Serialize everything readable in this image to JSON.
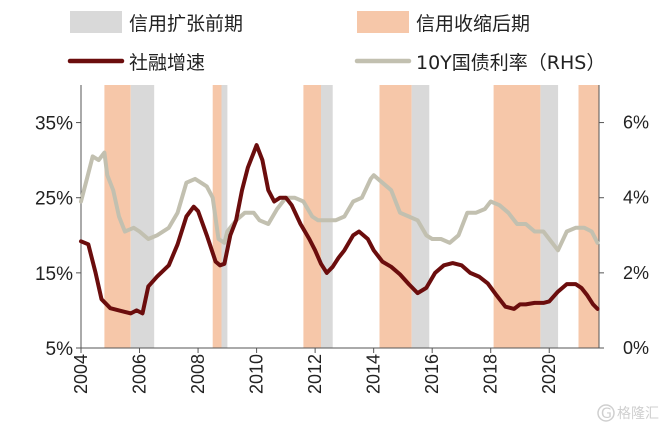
{
  "chart_data": {
    "type": "line",
    "legend": {
      "position": "top",
      "items": [
        {
          "label": "信用扩张前期",
          "kind": "band",
          "color": "#d9d9d9"
        },
        {
          "label": "信用收缩后期",
          "kind": "band",
          "color": "#f6c7a9"
        },
        {
          "label": "社融增速",
          "kind": "line",
          "color": "#6b0d0d"
        },
        {
          "label": "10Y国债利率（RHS）",
          "kind": "line",
          "color": "#c2c0b0"
        }
      ]
    },
    "left_axis": {
      "ylim": [
        0.05,
        0.4
      ],
      "ticks": [
        "5%",
        "15%",
        "25%",
        "35%"
      ],
      "tick_values": [
        0.05,
        0.15,
        0.25,
        0.35
      ]
    },
    "right_axis": {
      "ylim": [
        0,
        7
      ],
      "ticks": [
        "0%",
        "2%",
        "4%",
        "6%"
      ],
      "tick_values": [
        0,
        2,
        4,
        6
      ]
    },
    "x_axis": {
      "xlim": [
        2004,
        2021.7
      ],
      "ticks": [
        "2004",
        "2006",
        "2008",
        "2010",
        "2012",
        "2014",
        "2016",
        "2018",
        "2020"
      ],
      "tick_values": [
        2004,
        2006,
        2008,
        2010,
        2012,
        2014,
        2016,
        2018,
        2020
      ]
    },
    "bands": [
      {
        "start": 2004.8,
        "end": 2005.7,
        "category": "信用收缩后期"
      },
      {
        "start": 2005.7,
        "end": 2006.5,
        "category": "信用扩张前期"
      },
      {
        "start": 2008.5,
        "end": 2008.8,
        "category": "信用收缩后期"
      },
      {
        "start": 2008.8,
        "end": 2009.0,
        "category": "信用扩张前期"
      },
      {
        "start": 2011.6,
        "end": 2012.2,
        "category": "信用收缩后期"
      },
      {
        "start": 2012.2,
        "end": 2012.6,
        "category": "信用扩张前期"
      },
      {
        "start": 2014.2,
        "end": 2015.3,
        "category": "信用收缩后期"
      },
      {
        "start": 2015.3,
        "end": 2015.9,
        "category": "信用扩张前期"
      },
      {
        "start": 2018.1,
        "end": 2019.7,
        "category": "信用收缩后期"
      },
      {
        "start": 2019.7,
        "end": 2020.3,
        "category": "信用扩张前期"
      },
      {
        "start": 2021.0,
        "end": 2021.7,
        "category": "信用收缩后期"
      }
    ],
    "series": [
      {
        "name": "社融增速",
        "axis": "left",
        "color": "#6b0d0d",
        "x": [
          2004.0,
          2004.25,
          2004.5,
          2004.7,
          2005.0,
          2005.3,
          2005.5,
          2005.7,
          2005.9,
          2006.1,
          2006.3,
          2006.6,
          2007.0,
          2007.3,
          2007.6,
          2007.85,
          2008.0,
          2008.3,
          2008.6,
          2008.75,
          2008.9,
          2009.1,
          2009.3,
          2009.5,
          2009.7,
          2009.9,
          2010.0,
          2010.2,
          2010.4,
          2010.6,
          2010.8,
          2011.0,
          2011.2,
          2011.5,
          2011.8,
          2012.0,
          2012.2,
          2012.4,
          2012.6,
          2012.8,
          2013.0,
          2013.3,
          2013.5,
          2013.8,
          2014.0,
          2014.3,
          2014.6,
          2014.9,
          2015.2,
          2015.5,
          2015.8,
          2016.1,
          2016.4,
          2016.7,
          2017.0,
          2017.3,
          2017.6,
          2017.9,
          2018.2,
          2018.5,
          2018.8,
          2019.0,
          2019.2,
          2019.5,
          2019.8,
          2020.0,
          2020.3,
          2020.6,
          2020.9,
          2021.1,
          2021.3,
          2021.5,
          2021.65
        ],
        "values": [
          0.192,
          0.188,
          0.15,
          0.115,
          0.103,
          0.1,
          0.098,
          0.096,
          0.1,
          0.096,
          0.132,
          0.145,
          0.16,
          0.188,
          0.225,
          0.238,
          0.232,
          0.2,
          0.165,
          0.16,
          0.162,
          0.2,
          0.22,
          0.26,
          0.29,
          0.31,
          0.32,
          0.3,
          0.26,
          0.245,
          0.25,
          0.25,
          0.24,
          0.215,
          0.195,
          0.18,
          0.162,
          0.15,
          0.158,
          0.17,
          0.18,
          0.2,
          0.205,
          0.195,
          0.18,
          0.165,
          0.158,
          0.148,
          0.135,
          0.123,
          0.13,
          0.15,
          0.16,
          0.163,
          0.16,
          0.15,
          0.145,
          0.136,
          0.12,
          0.105,
          0.102,
          0.108,
          0.108,
          0.11,
          0.11,
          0.112,
          0.125,
          0.135,
          0.135,
          0.13,
          0.12,
          0.108,
          0.102
        ]
      },
      {
        "name": "10Y国债利率（RHS）",
        "axis": "right",
        "color": "#c2c0b0",
        "x": [
          2004.0,
          2004.2,
          2004.4,
          2004.6,
          2004.8,
          2004.9,
          2005.1,
          2005.3,
          2005.5,
          2005.8,
          2006.0,
          2006.3,
          2006.6,
          2007.0,
          2007.3,
          2007.6,
          2007.9,
          2008.1,
          2008.3,
          2008.5,
          2008.7,
          2008.9,
          2009.0,
          2009.3,
          2009.6,
          2009.9,
          2010.1,
          2010.4,
          2010.7,
          2011.0,
          2011.3,
          2011.6,
          2011.9,
          2012.1,
          2012.4,
          2012.7,
          2013.0,
          2013.3,
          2013.6,
          2013.9,
          2014.0,
          2014.3,
          2014.6,
          2014.9,
          2015.2,
          2015.5,
          2015.8,
          2016.0,
          2016.3,
          2016.6,
          2016.9,
          2017.2,
          2017.5,
          2017.8,
          2018.0,
          2018.3,
          2018.6,
          2018.9,
          2019.2,
          2019.5,
          2019.8,
          2020.0,
          2020.3,
          2020.6,
          2020.9,
          2021.2,
          2021.45,
          2021.65
        ],
        "values": [
          3.9,
          4.5,
          5.1,
          5.0,
          5.2,
          4.6,
          4.2,
          3.5,
          3.1,
          3.2,
          3.1,
          2.9,
          3.0,
          3.2,
          3.6,
          4.4,
          4.5,
          4.4,
          4.3,
          4.0,
          2.9,
          2.8,
          3.1,
          3.4,
          3.6,
          3.6,
          3.4,
          3.3,
          3.7,
          4.0,
          4.0,
          3.9,
          3.5,
          3.4,
          3.4,
          3.4,
          3.5,
          3.9,
          4.0,
          4.5,
          4.6,
          4.4,
          4.2,
          3.6,
          3.5,
          3.4,
          3.0,
          2.9,
          2.9,
          2.8,
          3.0,
          3.6,
          3.6,
          3.7,
          3.9,
          3.8,
          3.6,
          3.3,
          3.3,
          3.1,
          3.1,
          2.9,
          2.6,
          3.1,
          3.2,
          3.2,
          3.1,
          2.8
        ]
      }
    ]
  },
  "watermark": {
    "text": "格隆汇",
    "logo_letter": "G"
  }
}
